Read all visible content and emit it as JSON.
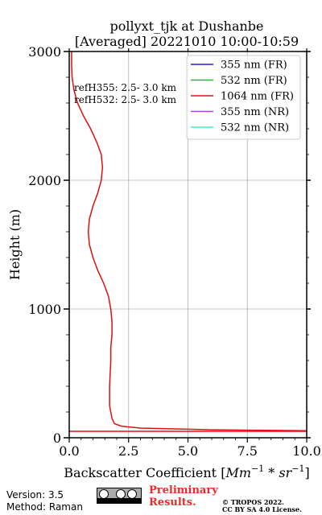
{
  "chart_data": {
    "type": "line",
    "title_line1": "pollyxt_tjk at Dushanbe",
    "title_line2": "[Averaged] 20221010 10:00-10:59",
    "xlabel_prefix": "Backscatter Coefficient [",
    "xlabel_math": "Mm",
    "xlabel_exp1": "−1",
    "xlabel_mid": " * ",
    "xlabel_sr": "sr",
    "xlabel_exp2": "−1",
    "xlabel_suffix": "]",
    "ylabel": "Height (m)",
    "xlim": [
      0,
      10
    ],
    "ylim": [
      0,
      3000
    ],
    "xticks": [
      0.0,
      2.5,
      5.0,
      7.5,
      10.0
    ],
    "xtick_labels": [
      "0.0",
      "2.5",
      "5.0",
      "7.5",
      "10.0"
    ],
    "yticks": [
      0,
      1000,
      2000,
      3000
    ],
    "ytick_labels": [
      "0",
      "1000",
      "2000",
      "3000"
    ],
    "grid": true,
    "legend_position": "top-right",
    "annotations": [
      "refH355:  2.5- 3.0 km",
      "refH532:  2.5- 3.0 km"
    ],
    "series": [
      {
        "name": "355 nm (FR)",
        "color": "#2222dd",
        "x": [],
        "y": []
      },
      {
        "name": "532 nm (FR)",
        "color": "#22bb22",
        "x": [],
        "y": []
      },
      {
        "name": "1064 nm (FR)",
        "color": "#dd1111",
        "x": [
          10.0,
          6.0,
          3.0,
          2.2,
          1.9,
          1.8,
          1.75,
          1.7,
          1.7,
          1.75,
          1.75,
          1.8,
          1.8,
          1.75,
          1.65,
          1.45,
          1.2,
          1.0,
          0.85,
          0.8,
          0.85,
          1.0,
          1.2,
          1.35,
          1.4,
          1.35,
          1.15,
          0.9,
          0.6,
          0.35,
          0.2,
          0.12,
          0.1,
          0.1
        ],
        "y": [
          55,
          62,
          75,
          90,
          110,
          150,
          200,
          250,
          400,
          600,
          700,
          800,
          900,
          1000,
          1100,
          1200,
          1300,
          1400,
          1500,
          1600,
          1700,
          1800,
          1900,
          2000,
          2100,
          2200,
          2300,
          2400,
          2500,
          2600,
          2700,
          2800,
          2900,
          3000
        ]
      },
      {
        "name": "355 nm (NR)",
        "color": "#aa44dd",
        "x": [],
        "y": []
      },
      {
        "name": "532 nm (NR)",
        "color": "#44eebb",
        "x": [],
        "y": []
      }
    ],
    "baseline_line": {
      "color": "#dd1111",
      "y": 50
    }
  },
  "footer": {
    "version": "Version: 3.5",
    "method": "Method: Raman",
    "preliminary_line1": "Preliminary",
    "preliminary_line2": "Results.",
    "copyright_line1": "© TROPOS 2022.",
    "copyright_line2": "CC BY SA 4.0 License."
  }
}
